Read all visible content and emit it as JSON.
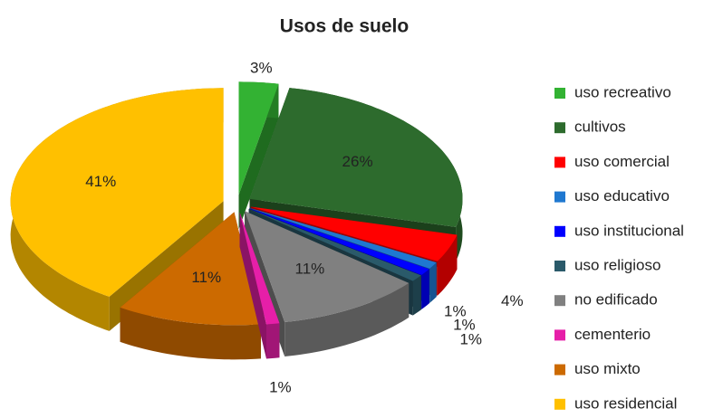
{
  "chart_data": {
    "type": "pie",
    "title": "Usos de suelo",
    "categories": [
      "uso recreativo",
      "cultivos",
      "uso comercial",
      "uso educativo",
      "uso institucional",
      "uso religioso",
      "no edificado",
      "cementerio",
      "uso mixto",
      "uso residencial"
    ],
    "values": [
      3,
      26,
      4,
      1,
      1,
      1,
      11,
      1,
      11,
      41
    ],
    "value_labels": [
      "3%",
      "26%",
      "4%",
      "1%",
      "1%",
      "1%",
      "11%",
      "1%",
      "11%",
      "41%"
    ],
    "colors": [
      "#33b233",
      "#2d6b2d",
      "#ff0000",
      "#1f78d0",
      "#0000ff",
      "#2a5a6a",
      "#808080",
      "#e61fa8",
      "#cc6a00",
      "#ffc000"
    ],
    "legend": "right"
  }
}
